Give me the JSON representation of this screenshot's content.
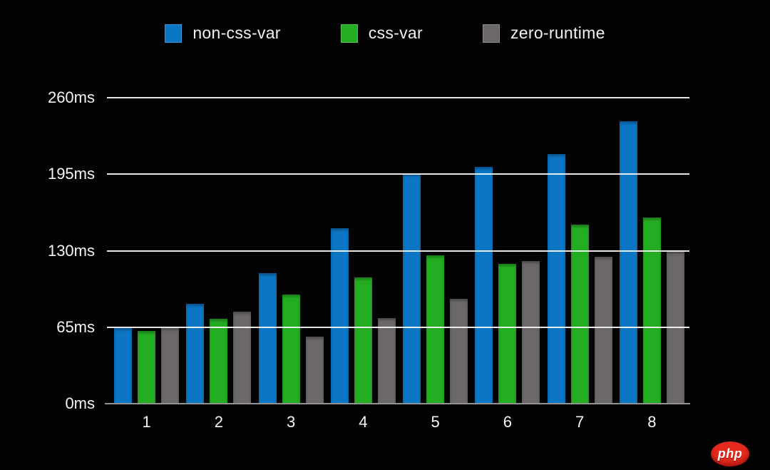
{
  "page": {
    "background": "#020202",
    "text_color": "#f5f5f5"
  },
  "chart_data": {
    "type": "bar",
    "unit": "ms",
    "categories": [
      "1",
      "2",
      "3",
      "4",
      "5",
      "6",
      "7",
      "8"
    ],
    "series": [
      {
        "name": "non-css-var",
        "color": "#0b76c4",
        "values": [
          64,
          85,
          111,
          149,
          195,
          201,
          212,
          240
        ]
      },
      {
        "name": "css-var",
        "color": "#25ad22",
        "values": [
          62,
          72,
          93,
          107,
          126,
          119,
          152,
          158
        ]
      },
      {
        "name": "zero-runtime",
        "color": "#6b676b",
        "values": [
          64,
          78,
          57,
          73,
          89,
          121,
          125,
          129
        ]
      }
    ],
    "yticks": [
      {
        "value": 0,
        "label": "0ms"
      },
      {
        "value": 65,
        "label": "65ms"
      },
      {
        "value": 130,
        "label": "130ms"
      },
      {
        "value": 195,
        "label": "195ms"
      },
      {
        "value": 260,
        "label": "260ms"
      }
    ],
    "ylim": [
      0,
      275
    ],
    "grid": true,
    "gridline_color": "rgba(248,248,248,0.92)",
    "axis_line_color": "#929292",
    "legend_position": "top",
    "xlabel": "",
    "ylabel": ""
  },
  "watermark": {
    "label": "php",
    "color": "#e32a1d"
  }
}
